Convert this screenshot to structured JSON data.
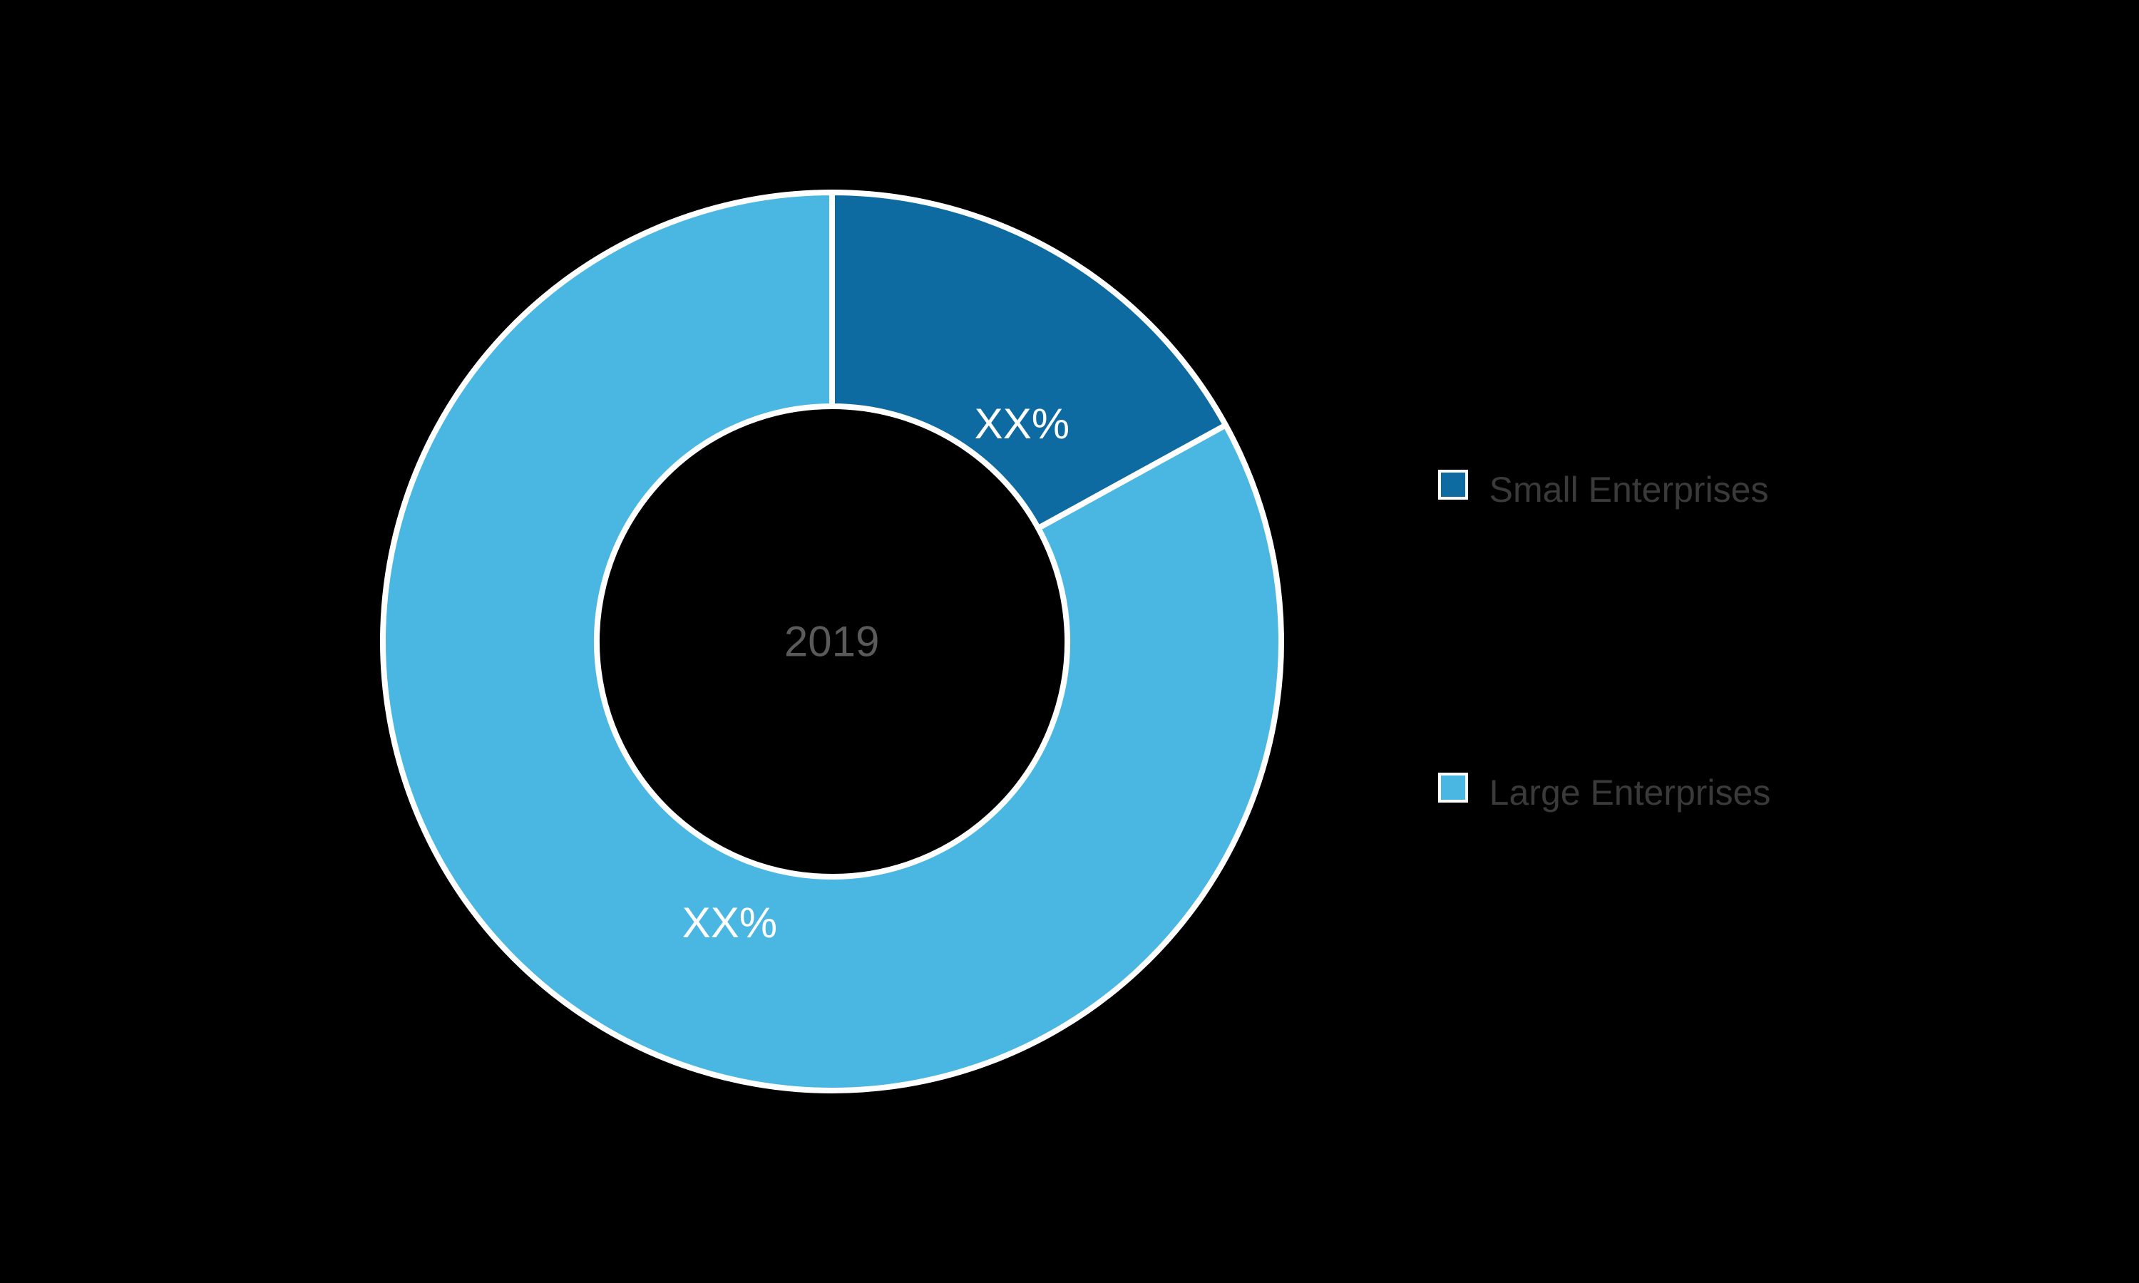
{
  "chart": {
    "type": "donut",
    "center_label": "2019",
    "background_color": "#000000",
    "outer_radius": 630,
    "inner_radius": 330,
    "stroke_color": "#ffffff",
    "stroke_width": 8,
    "slices": [
      {
        "label": "XX%",
        "value": 17,
        "color": "#0d6ba1",
        "legend_label": "Small Enterprises"
      },
      {
        "label": "XX%",
        "value": 83,
        "color": "#4ab7e2",
        "legend_label": "Large Enterprises"
      }
    ],
    "center_label_color": "#5a5a5a",
    "center_label_fontsize": 60,
    "slice_label_color": "#ffffff",
    "slice_label_fontsize": 60,
    "legend_text_color": "#3a3a3a",
    "legend_text_fontsize": 50,
    "legend_swatch_border": "#ffffff"
  }
}
